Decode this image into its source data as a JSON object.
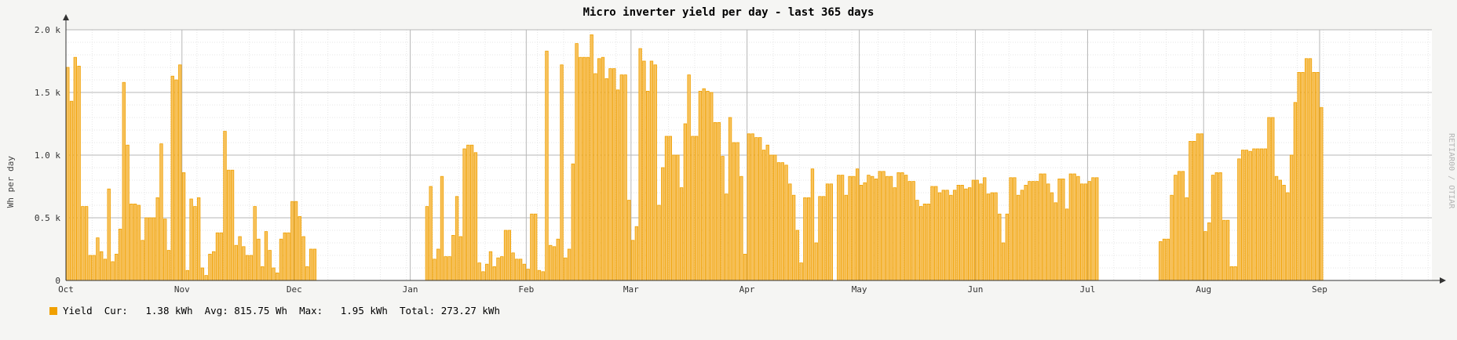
{
  "title": "Micro inverter yield per day - last 365 days",
  "ylabel": "Wh per day",
  "watermark": "RETIAR00 / OTIAR",
  "colors": {
    "bar": "#f0a000",
    "bar_fill": "#f7c25e",
    "background": "#ffffff",
    "page": "#f5f5f3",
    "grid": "#e6e6e6",
    "major_grid": "#b7b7b7"
  },
  "legend": {
    "label": "Yield",
    "cur": "Cur:   1.38 kWh",
    "avg": "Avg: 815.75 Wh",
    "max": "Max:   1.95 kWh",
    "total": "Total: 273.27 kWh"
  },
  "chart_data": {
    "type": "bar",
    "title": "Micro inverter yield per day - last 365 days",
    "ylabel": "Wh per day",
    "xlabel": "",
    "ylim": [
      0,
      2000
    ],
    "grid": true,
    "y_ticks": [
      "0",
      "0.5 k",
      "1.0 k",
      "1.5 k",
      "2.0 k"
    ],
    "x_ticks": [
      "Oct",
      "Nov",
      "Dec",
      "Jan",
      "Feb",
      "Mar",
      "Apr",
      "May",
      "Jun",
      "Jul",
      "Aug",
      "Sep"
    ],
    "x_tick_days": [
      0,
      31,
      61,
      92,
      123,
      151,
      182,
      212,
      243,
      273,
      304,
      335
    ],
    "days": 365,
    "series": [
      {
        "name": "Yield",
        "values": [
          1700,
          1430,
          1780,
          1710,
          590,
          590,
          200,
          200,
          340,
          230,
          170,
          730,
          150,
          210,
          410,
          1580,
          1080,
          610,
          610,
          600,
          320,
          500,
          500,
          500,
          660,
          1090,
          490,
          240,
          1630,
          1600,
          1720,
          860,
          80,
          650,
          590,
          660,
          100,
          40,
          210,
          230,
          380,
          380,
          1190,
          880,
          880,
          280,
          350,
          270,
          200,
          200,
          590,
          330,
          110,
          390,
          240,
          100,
          60,
          330,
          380,
          380,
          630,
          630,
          510,
          350,
          110,
          250,
          250,
          0,
          0,
          0,
          0,
          0,
          0,
          0,
          0,
          0,
          0,
          0,
          0,
          0,
          0,
          0,
          0,
          0,
          0,
          0,
          0,
          0,
          0,
          0,
          0,
          0,
          0,
          0,
          0,
          0,
          590,
          750,
          170,
          250,
          830,
          190,
          190,
          360,
          670,
          350,
          1050,
          1080,
          1080,
          1020,
          140,
          70,
          130,
          230,
          110,
          180,
          190,
          400,
          400,
          220,
          170,
          170,
          130,
          90,
          530,
          530,
          80,
          70,
          1830,
          280,
          270,
          330,
          1720,
          180,
          250,
          930,
          1890,
          1780,
          1780,
          1780,
          1960,
          1650,
          1770,
          1780,
          1610,
          1690,
          1690,
          1520,
          1640,
          1640,
          640,
          320,
          430,
          1850,
          1750,
          1510,
          1750,
          1720,
          600,
          900,
          1150,
          1150,
          1000,
          1000,
          740,
          1250,
          1640,
          1150,
          1150,
          1510,
          1530,
          1510,
          1500,
          1260,
          1260,
          990,
          690,
          1300,
          1100,
          1100,
          830,
          210,
          1170,
          1170,
          1140,
          1140,
          1040,
          1080,
          1000,
          1000,
          940,
          940,
          920,
          770,
          680,
          400,
          140,
          660,
          660,
          890,
          300,
          670,
          670,
          770,
          770,
          0,
          840,
          840,
          680,
          830,
          830,
          890,
          760,
          780,
          840,
          830,
          810,
          870,
          870,
          830,
          830,
          740,
          860,
          860,
          840,
          790,
          790,
          640,
          590,
          610,
          610,
          750,
          750,
          700,
          720,
          720,
          680,
          720,
          760,
          760,
          730,
          740,
          800,
          800,
          770,
          820,
          690,
          700,
          700,
          530,
          300,
          530,
          820,
          820,
          680,
          720,
          760,
          790,
          790,
          790,
          850,
          850,
          770,
          700,
          620,
          810,
          810,
          570,
          850,
          850,
          830,
          770,
          770,
          790,
          820,
          820,
          0,
          0,
          0,
          0,
          0,
          0,
          0,
          0,
          0,
          0,
          0,
          0,
          0,
          0,
          0,
          0,
          310,
          330,
          330,
          680,
          840,
          870,
          870,
          660,
          1110,
          1110,
          1170,
          1170,
          390,
          460,
          840,
          860,
          860,
          480,
          480,
          110,
          110,
          970,
          1040,
          1040,
          1030,
          1050,
          1050,
          1050,
          1050,
          1300,
          1300,
          830,
          800,
          760,
          700,
          1000,
          1420,
          1660,
          1660,
          1770,
          1770,
          1660,
          1660,
          1380
        ]
      }
    ]
  }
}
